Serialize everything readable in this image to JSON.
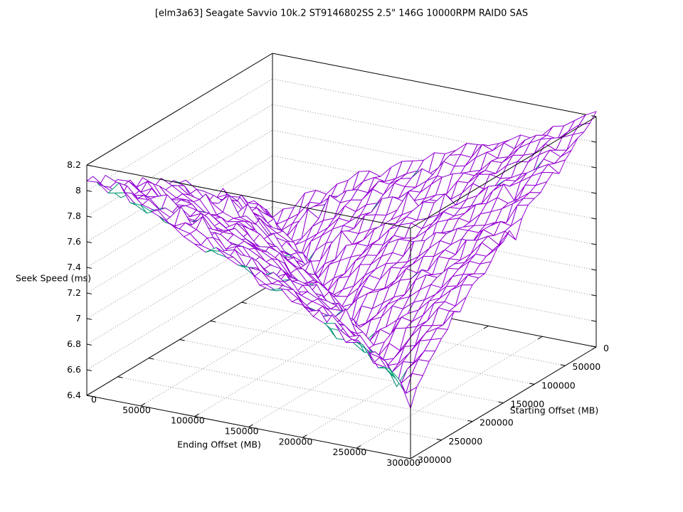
{
  "title": "[elm3a63] Seagate Savvio 10k.2 ST9146802SS 2.5\" 146G 10000RPM RAID0 SAS",
  "chart_data": {
    "type": "surface3d-wireframe",
    "title": "[elm3a63] Seagate Savvio 10k.2 ST9146802SS 2.5\" 146G 10000RPM RAID0 SAS",
    "xlabel": "Ending Offset (MB)",
    "ylabel": "Starting Offset (MB)",
    "zlabel": "Seek Speed (ms)",
    "xlim": [
      0,
      300000
    ],
    "ylim": [
      0,
      300000
    ],
    "zlim": [
      6.4,
      8.2
    ],
    "x_ticks": [
      0,
      50000,
      100000,
      150000,
      200000,
      250000,
      300000
    ],
    "x_tick_labels": [
      "0",
      "50000",
      "100000",
      "150000",
      "200000",
      "250000",
      "300000"
    ],
    "y_ticks": [
      0,
      50000,
      100000,
      150000,
      200000,
      250000,
      300000
    ],
    "y_tick_labels": [
      "0",
      "50000",
      "100000",
      "150000",
      "200000",
      "250000",
      "300000"
    ],
    "z_ticks": [
      6.4,
      6.6,
      6.8,
      7.0,
      7.2,
      7.4,
      7.6,
      7.8,
      8.0,
      8.2
    ],
    "z_tick_labels": [
      "6.4",
      "6.6",
      "6.8",
      "7",
      "7.2",
      "7.4",
      "7.6",
      "7.8",
      "8",
      "8.2"
    ],
    "grid": true,
    "grid_style": "dotted",
    "legend": "none",
    "mesh": {
      "nx": 31,
      "ny": 31,
      "x_step": 10000,
      "y_step": 10000
    },
    "surface_model": {
      "description": "Seek time (ms) rises with seek distance |ending-starting|; valley ~6.9 ms along the diagonal start=end, peaks ~8.2 ms at full-stroke corners (0,300000) and (300000,0); jagged measurement noise; underside of mesh visible as teal at valley fringes.",
      "base": 6.92,
      "dist_coeff": 1.215,
      "dist_exp": 0.78,
      "asym": 0.045,
      "front_dip": 0.05,
      "noise_amp": 0.1,
      "spike_prob": 0.07,
      "spike_amp": 0.22
    },
    "colors": {
      "surface_top": "#9400d3",
      "surface_bottom": "#009e73",
      "axis": "#000000",
      "grid": "#8c8c8c",
      "background": "#ffffff",
      "text": "#000000"
    }
  }
}
